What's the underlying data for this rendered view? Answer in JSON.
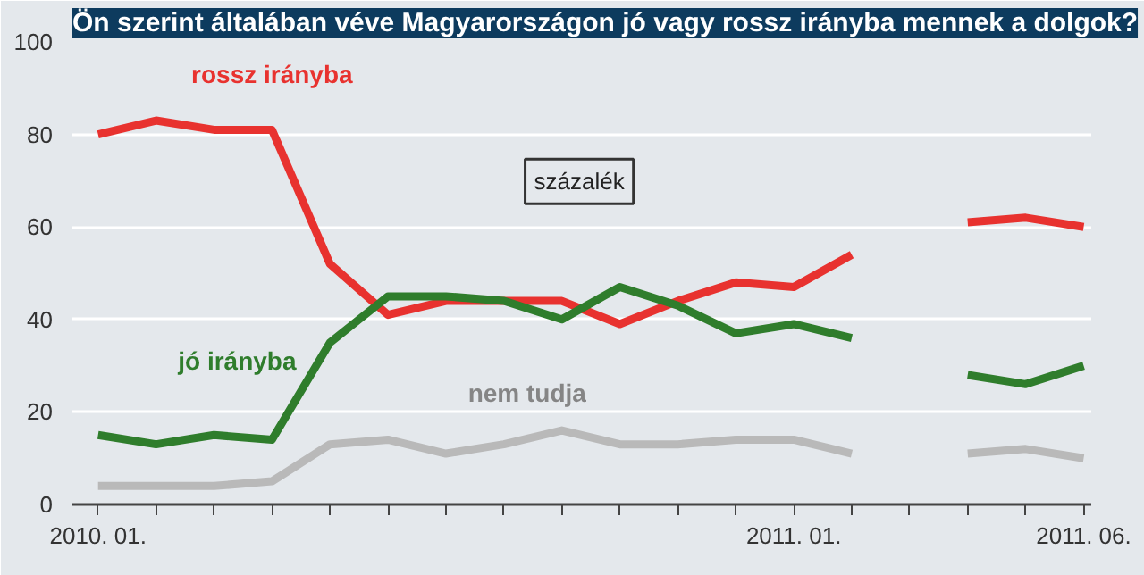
{
  "chart_data": {
    "type": "line",
    "title": "Ön szerint általában véve Magyarországon jó vagy rossz irányba mennek a dolgok?",
    "annotations": [
      "százalék"
    ],
    "x": [
      "2010-01",
      "2010-02",
      "2010-03",
      "2010-04",
      "2010-05",
      "2010-06",
      "2010-07",
      "2010-08",
      "2010-09",
      "2010-10",
      "2010-11",
      "2010-12",
      "2011-01",
      "2011-02",
      "2011-03",
      "2011-04",
      "2011-05",
      "2011-06"
    ],
    "series": [
      {
        "name": "rossz irányba",
        "color": "#e8322f",
        "values": [
          80,
          83,
          81,
          81,
          52,
          41,
          44,
          44,
          44,
          39,
          44,
          48,
          47,
          54,
          null,
          61,
          62,
          60
        ]
      },
      {
        "name": "jó irányba",
        "color": "#2f7d2c",
        "values": [
          15,
          13,
          15,
          14,
          35,
          45,
          45,
          44,
          40,
          47,
          43,
          37,
          39,
          36,
          null,
          28,
          26,
          30
        ]
      },
      {
        "name": "nem tudja",
        "color": "#b9b9b9",
        "values": [
          4,
          4,
          4,
          5,
          13,
          14,
          11,
          13,
          16,
          13,
          13,
          14,
          14,
          11,
          null,
          11,
          12,
          10
        ]
      }
    ],
    "xlim": [
      "2009-12-18",
      "2011-06-05"
    ],
    "xticks": [
      {
        "value": "2010-01",
        "label": "2010. 01."
      },
      {
        "value": "2010-02",
        "label": null
      },
      {
        "value": "2010-03",
        "label": null
      },
      {
        "value": "2010-04",
        "label": null
      },
      {
        "value": "2010-05",
        "label": null
      },
      {
        "value": "2010-06",
        "label": null
      },
      {
        "value": "2010-07",
        "label": null
      },
      {
        "value": "2010-08",
        "label": null
      },
      {
        "value": "2010-09",
        "label": null
      },
      {
        "value": "2010-10",
        "label": null
      },
      {
        "value": "2010-11",
        "label": null
      },
      {
        "value": "2010-12",
        "label": null
      },
      {
        "value": "2011-01",
        "label": "2011. 01."
      },
      {
        "value": "2011-02",
        "label": null
      },
      {
        "value": "2011-03",
        "label": null
      },
      {
        "value": "2011-04",
        "label": null
      },
      {
        "value": "2011-05",
        "label": null
      },
      {
        "value": "2011-06",
        "label": "2011. 06."
      }
    ],
    "ylim": [
      0,
      100
    ],
    "yticks": [
      0,
      20,
      40,
      60,
      80,
      100
    ],
    "grid": "y",
    "line_style": "solid",
    "marker": "none"
  }
}
